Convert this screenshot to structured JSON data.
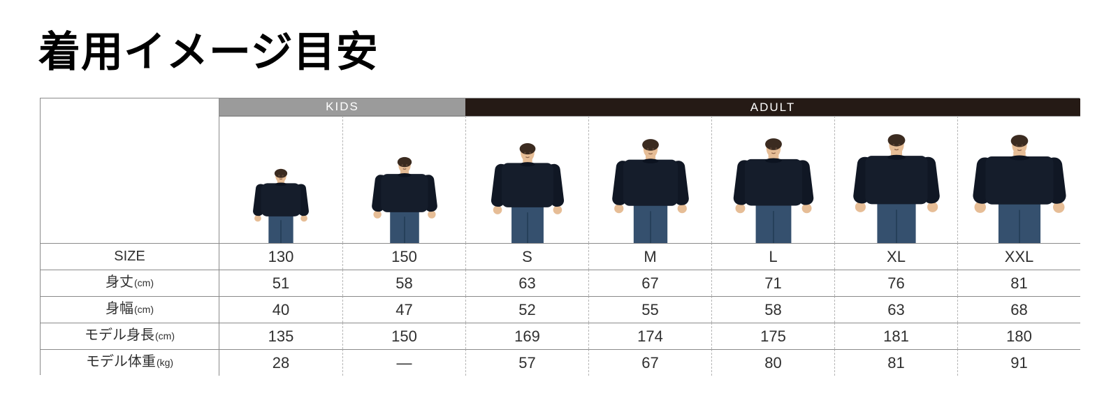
{
  "page": {
    "title": "着用イメージ目安"
  },
  "size_chart": {
    "group_headers": [
      {
        "label": "KIDS",
        "colspan": 2
      },
      {
        "label": "ADULT",
        "colspan": 5
      }
    ],
    "size_row_label": "SIZE",
    "sizes": [
      "130",
      "150",
      "S",
      "M",
      "L",
      "XL",
      "XXL"
    ],
    "measurement_rows": [
      {
        "label": "身丈",
        "unit": "(cm)",
        "values": [
          "51",
          "58",
          "63",
          "67",
          "71",
          "76",
          "81"
        ]
      },
      {
        "label": "身幅",
        "unit": "(cm)",
        "values": [
          "40",
          "47",
          "52",
          "55",
          "58",
          "63",
          "68"
        ]
      },
      {
        "label": "モデル身長",
        "unit": "(cm)",
        "values": [
          "135",
          "150",
          "169",
          "174",
          "175",
          "181",
          "180"
        ]
      },
      {
        "label": "モデル体重",
        "unit": "(kg)",
        "values": [
          "28",
          "—",
          "57",
          "67",
          "80",
          "81",
          "91"
        ]
      }
    ],
    "models": [
      {
        "size": "130",
        "group": "KIDS"
      },
      {
        "size": "150",
        "group": "KIDS"
      },
      {
        "size": "S",
        "group": "ADULT"
      },
      {
        "size": "M",
        "group": "ADULT"
      },
      {
        "size": "L",
        "group": "ADULT"
      },
      {
        "size": "XL",
        "group": "ADULT"
      },
      {
        "size": "XXL",
        "group": "ADULT"
      }
    ]
  },
  "colors": {
    "kids_header_bg": "#9b9b9b",
    "adult_header_bg": "#251a15",
    "header_text": "#ffffff",
    "border_solid": "#8a8a8a",
    "border_dashed": "#b5b5b5",
    "title_text": "#000000",
    "cell_text": "#2f2f2f",
    "sweatshirt": "#151d2b",
    "sweatshirt_sleeve": "#101724",
    "jeans": "#35506e",
    "skin": "#e6bd96",
    "hair": "#3b2b20"
  }
}
